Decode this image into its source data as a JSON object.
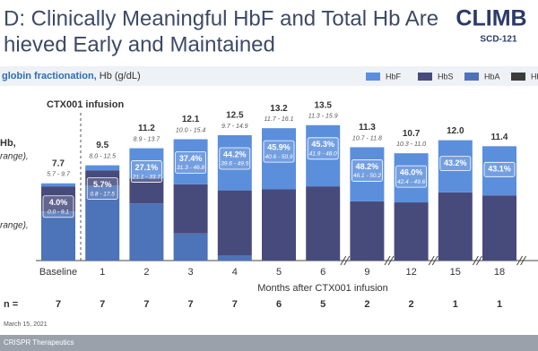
{
  "header": {
    "title_line1": "D: Clinically Meaningful HbF and Total Hb Are",
    "title_line2": "hieved Early and Maintained",
    "logo": "CLIMB",
    "logo_sub": "SCD-121"
  },
  "chart_data": {
    "type": "stacked-bar",
    "subtitle_bold": "globin fractionation,",
    "subtitle": "Hb (g/dL)",
    "annotation": "CTX001 infusion",
    "side_labels": [
      "Hb,",
      "range),",
      "range),"
    ],
    "categories": [
      "Baseline",
      "1",
      "2",
      "3",
      "4",
      "5",
      "6",
      "9",
      "12",
      "15",
      "18"
    ],
    "xlabel": "Months after CTX001 infusion",
    "series": [
      {
        "name": "HbF",
        "color": "#5b8fdc",
        "values": [
          0.3,
          0.5,
          3.0,
          4.5,
          5.5,
          6.1,
          6.1,
          5.4,
          4.9,
          5.2,
          4.9
        ]
      },
      {
        "name": "HbS",
        "color": "#474b7c",
        "values": [
          2.5,
          1.5,
          2.5,
          4.9,
          6.5,
          7.1,
          7.4,
          5.9,
          5.8,
          6.8,
          6.5
        ]
      },
      {
        "name": "HbA",
        "color": "#4d73b8",
        "values": [
          4.9,
          7.5,
          5.7,
          2.7,
          0.5,
          0,
          0,
          0,
          0,
          0,
          0
        ]
      },
      {
        "name": "Hb",
        "color": "#3c3c3c",
        "values": [
          null,
          null,
          null,
          null,
          null,
          null,
          null,
          null,
          null,
          null,
          null
        ]
      }
    ],
    "totals": [
      7.7,
      9.5,
      11.2,
      12.1,
      12.5,
      13.2,
      13.5,
      11.3,
      10.7,
      12.0,
      11.4
    ],
    "total_value_labels": [
      "7.7",
      "9.5",
      "11.2",
      "12.1",
      "12.5",
      "13.2",
      "13.5",
      "11.3",
      "10.7",
      "12.0",
      "11.4"
    ],
    "total_ranges": [
      "5.7 - 9.7",
      "8.0 - 12.5",
      "8.9 - 13.7",
      "10.0 - 15.4",
      "9.7 - 14.9",
      "11.7 - 16.1",
      "11.3 - 15.9",
      "10.7 - 11.8",
      "10.3 - 11.0",
      null,
      null
    ],
    "hbf_pct": [
      4.0,
      5.7,
      27.1,
      37.4,
      44.2,
      45.9,
      45.3,
      48.2,
      46.0,
      43.2,
      43.1
    ],
    "hbf_pct_labels": [
      "4.0%",
      "5.7%",
      "27.1%",
      "37.4%",
      "44.2%",
      "45.9%",
      "45.3%",
      "48.2%",
      "46.0%",
      "43.2%",
      "43.1%"
    ],
    "hbf_ranges": [
      "0.0 - 9.1",
      "0.8 - 17.5",
      "21.1 - 33.7",
      "31.3 - 46.8",
      "39.6 - 49.5",
      "40.6 - 50.9",
      "41.9 - 48.0",
      "46.1 - 50.2",
      "42.4 - 49.6",
      null,
      null
    ],
    "n_label": "n =",
    "n": [
      7,
      7,
      7,
      7,
      7,
      6,
      5,
      2,
      2,
      1,
      1
    ]
  },
  "footer": {
    "date": "March 15, 2021",
    "company": "CRISPR Therapeutics"
  }
}
